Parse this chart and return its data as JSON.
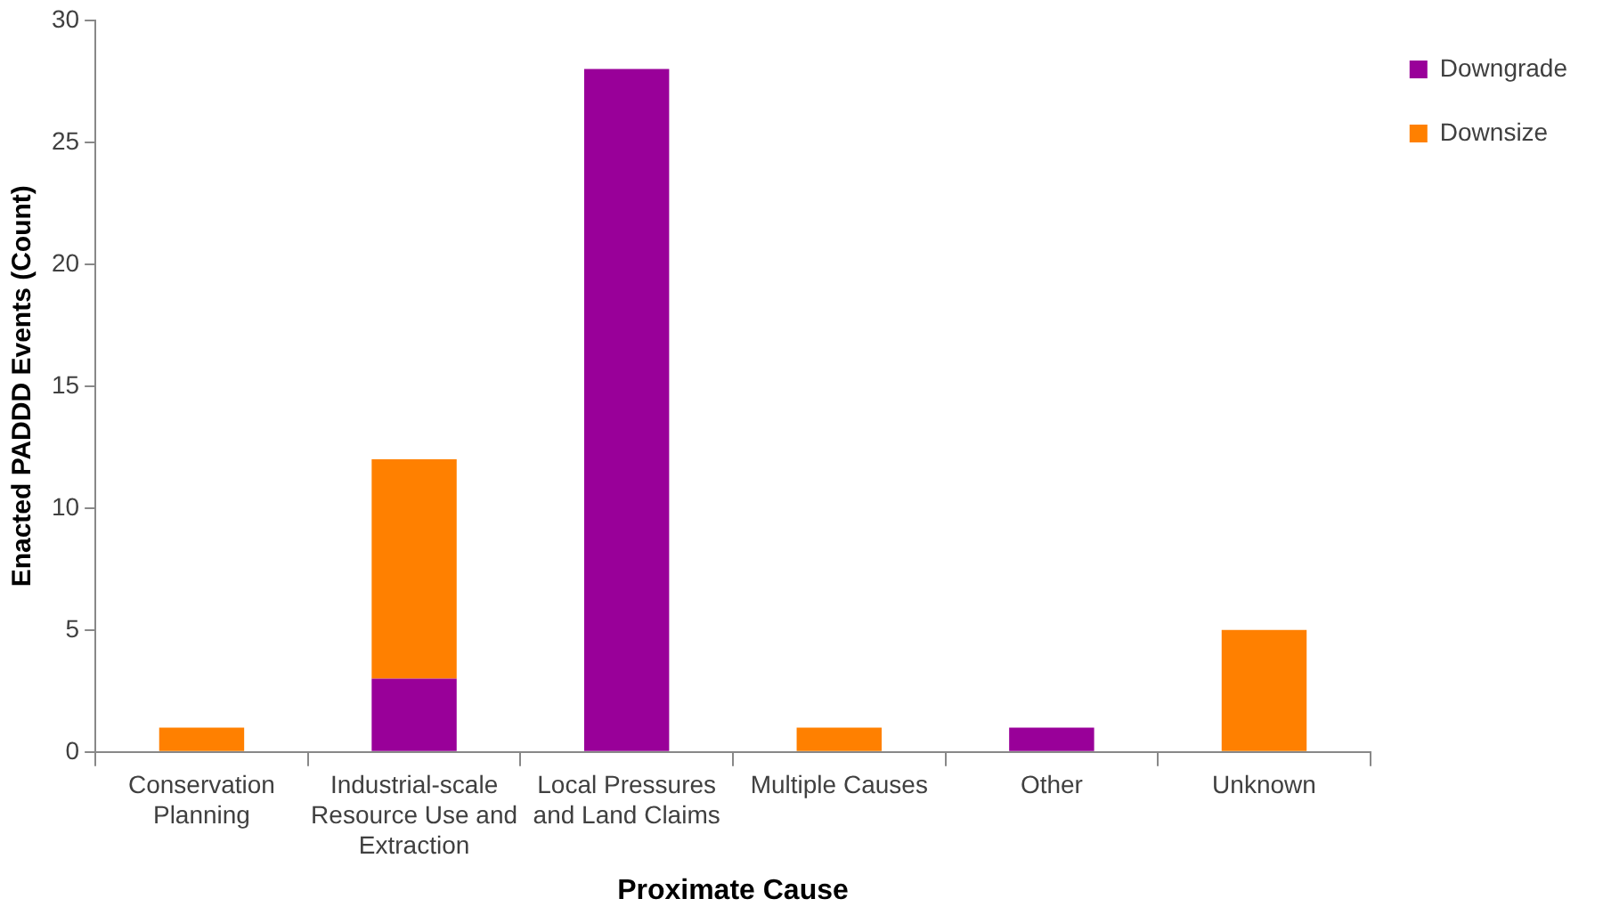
{
  "chart_data": {
    "type": "bar",
    "xlabel": "Proximate Cause",
    "ylabel": "Enacted PADDD Events (Count)",
    "categories": [
      "Conservation Planning",
      "Industrial-scale Resource Use and Extraction",
      "Local Pressures and Land Claims",
      "Multiple Causes",
      "Other",
      "Unknown"
    ],
    "series": [
      {
        "name": "Downgrade",
        "color": "#990099",
        "values": [
          0,
          3,
          28,
          0,
          1,
          0
        ]
      },
      {
        "name": "Downsize",
        "color": "#ff8000",
        "values": [
          1,
          9,
          0,
          1,
          0,
          5
        ]
      }
    ],
    "stacked": true,
    "ylim": [
      0,
      30
    ],
    "yticks": [
      0,
      5,
      10,
      15,
      20,
      25,
      30
    ],
    "grid": false,
    "legend": "top right"
  }
}
